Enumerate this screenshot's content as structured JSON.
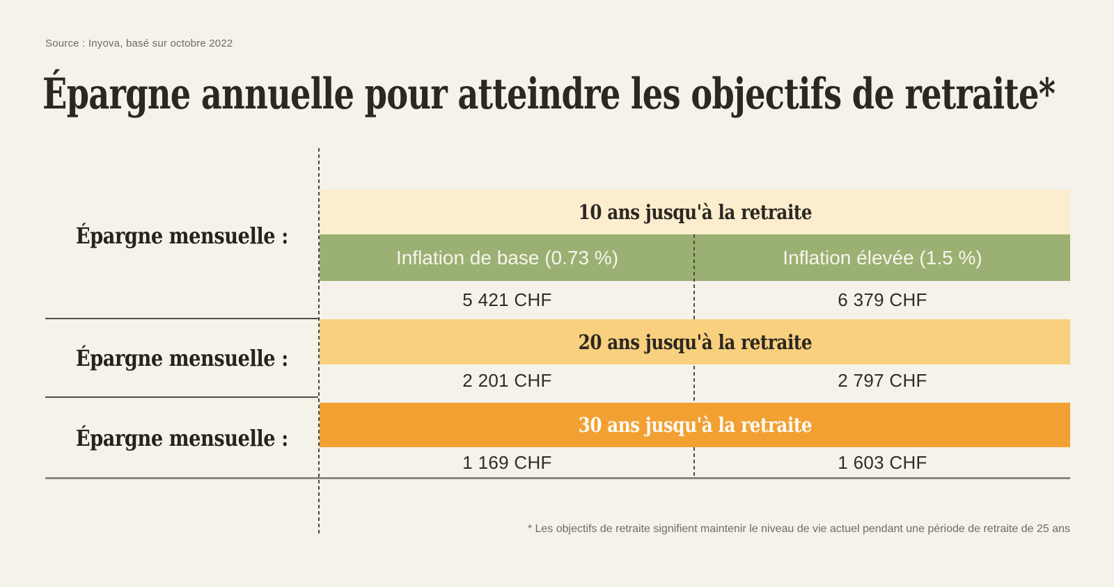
{
  "header": {
    "source": "Source : Inyova, basé sur octobre 2022",
    "title": "Épargne annuelle pour atteindre les objectifs de retraite*"
  },
  "table": {
    "row_label": "Épargne mensuelle :",
    "col_base": "Inflation de base (0.73 %)",
    "col_high": "Inflation élevée (1.5 %)",
    "rows": [
      {
        "period": "10 ans jusqu'à la retraite",
        "base": "5 421 CHF",
        "high": "6 379 CHF"
      },
      {
        "period": "20 ans jusqu'à la retraite",
        "base": "2 201 CHF",
        "high": "2 797 CHF"
      },
      {
        "period": "30 ans jusqu'à la retraite",
        "base": "1 169 CHF",
        "high": "1 603 CHF"
      }
    ]
  },
  "footnote": "* Les objectifs de retraite signifient maintenir le niveau de vie actuel pendant une période de retraite de 25 ans",
  "colors": {
    "background": "#F5F2EA",
    "band_10y": "#FBEDCE",
    "band_inflation_header": "#9BB173",
    "band_20y": "#F8D07E",
    "band_30y": "#F2A032",
    "ink": "#2B2721",
    "muted_text": "#6F6B62"
  },
  "chart_data": {
    "type": "table",
    "title": "Épargne annuelle pour atteindre les objectifs de retraite*",
    "source": "Source : Inyova, basé sur octobre 2022",
    "row_label": "Épargne mensuelle :",
    "columns": [
      "Inflation de base (0.73 %)",
      "Inflation élevée (1.5 %)"
    ],
    "rows": [
      {
        "period": "10 ans jusqu'à la retraite",
        "values_chf": [
          5421,
          6379
        ]
      },
      {
        "period": "20 ans jusqu'à la retraite",
        "values_chf": [
          2201,
          2797
        ]
      },
      {
        "period": "30 ans jusqu'à la retraite",
        "values_chf": [
          1169,
          1603
        ]
      }
    ],
    "unit": "CHF",
    "footnote": "* Les objectifs de retraite signifient maintenir le niveau de vie actuel pendant une période de retraite de 25 ans"
  }
}
